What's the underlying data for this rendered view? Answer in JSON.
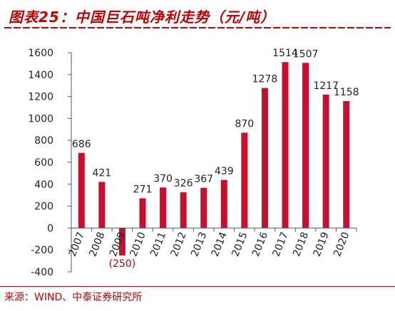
{
  "title": "图表25：中国巨石吨净利走势（元/吨）",
  "source": "来源：WIND、中泰证券研究所",
  "colors": {
    "accent": "#c00000",
    "bar": "#c8102e"
  },
  "chart_data": {
    "type": "bar",
    "categories": [
      "2007",
      "2008",
      "2009",
      "2010",
      "2011",
      "2012",
      "2013",
      "2014",
      "2015",
      "2016",
      "2017",
      "2018",
      "2019",
      "2020"
    ],
    "values": [
      686,
      421,
      -250,
      271,
      370,
      326,
      367,
      439,
      870,
      1278,
      1514,
      1507,
      1217,
      1158
    ],
    "value_labels": [
      "686",
      "421",
      "(250)",
      "271",
      "370",
      "326",
      "367",
      "439",
      "870",
      "1278",
      "1514",
      "1507",
      "1217",
      "1158"
    ],
    "y_ticks": [
      "1600",
      "1400",
      "1200",
      "1000",
      "800",
      "600",
      "400",
      "200",
      "0",
      "-200",
      "-400"
    ],
    "ylim": [
      -400,
      1600
    ],
    "grid": false,
    "legend": "none"
  }
}
